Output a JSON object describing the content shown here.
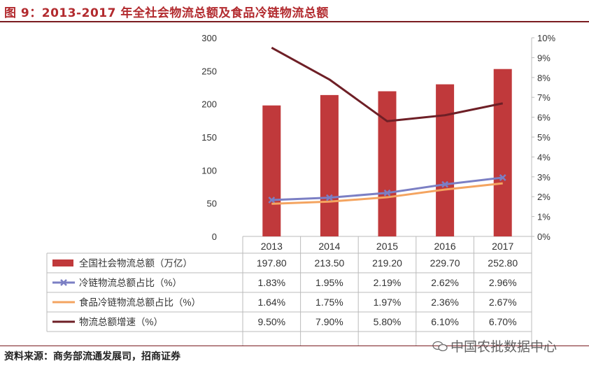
{
  "title": "图 9：2013-2017 年全社会物流总额及食品冷链物流总额",
  "source": "资料来源：商务部流通发展司，招商证券",
  "watermark": "中国农批数据中心",
  "colors": {
    "bar": "#c0393b",
    "line_coldchain": "#7b7fc4",
    "line_food": "#f4a460",
    "line_growth": "#6e1f26",
    "title": "#b22a2e"
  },
  "chart_data": {
    "type": "bar",
    "categories": [
      "2013",
      "2014",
      "2015",
      "2016",
      "2017"
    ],
    "y_left_ticks": [
      "0",
      "50",
      "100",
      "150",
      "200",
      "250",
      "300"
    ],
    "y_right_ticks": [
      "0%",
      "1%",
      "2%",
      "3%",
      "4%",
      "5%",
      "6%",
      "7%",
      "8%",
      "9%",
      "10%"
    ],
    "ylim_left": [
      0,
      300
    ],
    "ylim_right": [
      0,
      10
    ],
    "series": [
      {
        "name": "全国社会物流总额（万亿）",
        "type": "bar",
        "axis": "left",
        "values": [
          197.8,
          213.5,
          219.2,
          229.7,
          252.8
        ],
        "labels": [
          "197.80",
          "213.50",
          "219.20",
          "229.70",
          "252.80"
        ]
      },
      {
        "name": "冷链物流总额占比（%）",
        "type": "line",
        "axis": "right",
        "marker": "x",
        "values": [
          1.83,
          1.95,
          2.19,
          2.62,
          2.96
        ],
        "labels": [
          "1.83%",
          "1.95%",
          "2.19%",
          "2.62%",
          "2.96%"
        ]
      },
      {
        "name": "食品冷链物流总额占比（%）",
        "type": "line",
        "axis": "right",
        "values": [
          1.64,
          1.75,
          1.97,
          2.36,
          2.67
        ],
        "labels": [
          "1.64%",
          "1.75%",
          "1.97%",
          "2.36%",
          "2.67%"
        ]
      },
      {
        "name": "物流总额增速（%）",
        "type": "line",
        "axis": "right",
        "values": [
          9.5,
          7.9,
          5.8,
          6.1,
          6.7
        ],
        "labels": [
          "9.50%",
          "7.90%",
          "5.80%",
          "6.10%",
          "6.70%"
        ]
      }
    ]
  }
}
